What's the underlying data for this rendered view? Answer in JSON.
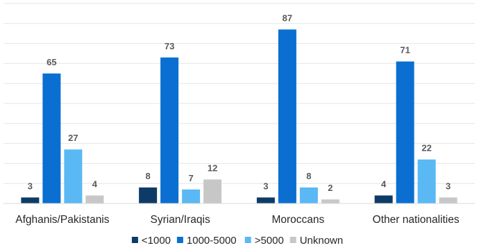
{
  "chart_data": {
    "type": "bar",
    "categories": [
      "Afghanis/Pakistanis",
      "Syrian/Iraqis",
      "Moroccans",
      "Other nationalities"
    ],
    "series": [
      {
        "name": "<1000",
        "color": "#0d3b66",
        "values": [
          3,
          8,
          3,
          4
        ]
      },
      {
        "name": "1000-5000",
        "color": "#0a6fd1",
        "values": [
          65,
          73,
          87,
          71
        ]
      },
      {
        "name": ">5000",
        "color": "#5ab8f5",
        "values": [
          27,
          7,
          8,
          22
        ]
      },
      {
        "name": "Unknown",
        "color": "#c7c7c7",
        "values": [
          4,
          12,
          2,
          3
        ]
      }
    ],
    "ylim": [
      0,
      100
    ],
    "grid": true,
    "data_labels": true,
    "legend_position": "bottom"
  }
}
